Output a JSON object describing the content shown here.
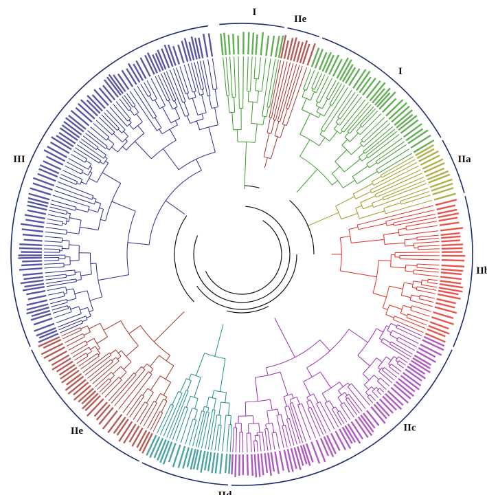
{
  "clades": [
    {
      "label": "I"
    },
    {
      "label": "IIe"
    },
    {
      "label": "I"
    },
    {
      "label": "IIa"
    },
    {
      "label": "IIb"
    },
    {
      "label": "IIc"
    },
    {
      "label": "IId"
    },
    {
      "label": "IIe"
    },
    {
      "label": "III"
    }
  ]
}
